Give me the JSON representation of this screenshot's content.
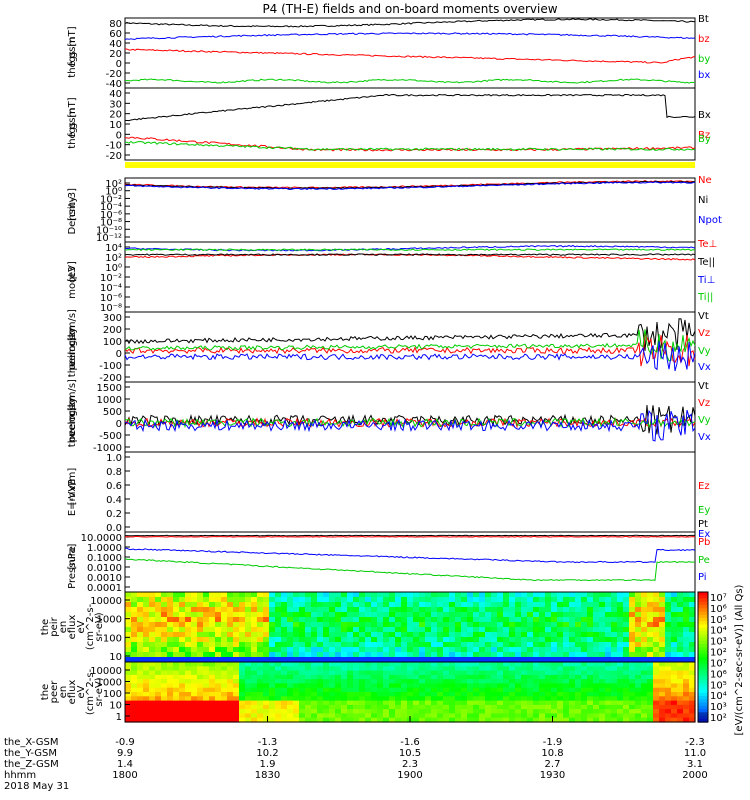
{
  "title": "P4 (TH-E) fields and on-board moments overview",
  "chart_data": {
    "type": "line",
    "x_ticks": [
      "1800",
      "1830",
      "1900",
      "1930",
      "2000"
    ],
    "panels": [
      {
        "id": "p1",
        "ylabel": [
          "the",
          "fgs",
          "gsm",
          "[nT]"
        ],
        "ticks": [
          "80",
          "60",
          "40",
          "20",
          "0",
          "-20",
          "-40"
        ],
        "ylim": [
          -50,
          90
        ],
        "series": [
          {
            "name": "Bt",
            "color": "#000000"
          },
          {
            "name": "bz",
            "color": "#ff0000"
          },
          {
            "name": "by",
            "color": "#00cc00"
          },
          {
            "name": "bx",
            "color": "#0000ff"
          }
        ]
      },
      {
        "id": "p2",
        "ylabel": [
          "the",
          "fgs",
          "gsm",
          "[nT]"
        ],
        "ticks": [
          "40",
          "30",
          "20",
          "10",
          "0",
          "-10",
          "-20"
        ],
        "ylim": [
          -27,
          42
        ],
        "series": [
          {
            "name": "Bx",
            "color": "#000000"
          },
          {
            "name": "Bz",
            "color": "#ff0000"
          },
          {
            "name": "By",
            "color": "#00cc00"
          }
        ]
      },
      {
        "id": "p3",
        "ylabel": [
          "Density",
          "[cm-3]"
        ],
        "ticks": [
          "10²",
          "10⁰",
          "10⁻²",
          "10⁻⁴",
          "10⁻⁶",
          "10⁻⁸",
          "10⁻¹⁰",
          "10⁻¹²"
        ],
        "ylim": [
          -13,
          3
        ],
        "series": [
          {
            "name": "Ne",
            "color": "#ff0000"
          },
          {
            "name": "Ni",
            "color": "#000000"
          },
          {
            "name": "Npot",
            "color": "#0000ff"
          }
        ]
      },
      {
        "id": "p4",
        "ylabel": [
          "moqt3",
          "[eV]"
        ],
        "ticks": [
          "10⁴",
          "10²",
          "10⁰",
          "10⁻²",
          "10⁻⁴",
          "10⁻⁶",
          "10⁻⁸"
        ],
        "ylim": [
          -9,
          4.5
        ],
        "series": [
          {
            "name": "Te⊥",
            "color": "#ff0000"
          },
          {
            "name": "Te||",
            "color": "#000000"
          },
          {
            "name": "Ti⊥",
            "color": "#0000ff"
          },
          {
            "name": "Ti||",
            "color": "#00cc00"
          }
        ]
      },
      {
        "id": "p5",
        "ylabel": [
          "the",
          "peim",
          "velocity",
          "gsm",
          "[km/s]"
        ],
        "ticks": [
          "300",
          "200",
          "100",
          "0",
          "-100",
          "-200"
        ],
        "ylim": [
          -230,
          320
        ],
        "series": [
          {
            "name": "Vt",
            "color": "#000000"
          },
          {
            "name": "Vz",
            "color": "#ff0000"
          },
          {
            "name": "Vy",
            "color": "#00cc00"
          },
          {
            "name": "Vx",
            "color": "#0000ff"
          }
        ]
      },
      {
        "id": "p6",
        "ylabel": [
          "the",
          "peem",
          "velocity",
          "gsm",
          "[km/s]"
        ],
        "ticks": [
          "1500",
          "1000",
          "500",
          "0",
          "-500",
          "-1000"
        ],
        "ylim": [
          -1150,
          1600
        ],
        "series": [
          {
            "name": "Vt",
            "color": "#000000"
          },
          {
            "name": "Vz",
            "color": "#ff0000"
          },
          {
            "name": "Vy",
            "color": "#00cc00"
          },
          {
            "name": "Vx",
            "color": "#0000ff"
          }
        ]
      },
      {
        "id": "p7",
        "ylabel": [
          "E=-VxB",
          "[mV/m]"
        ],
        "ticks": [
          "1.0",
          "0.8",
          "0.6",
          "0.4",
          "0.2",
          "0.0"
        ],
        "ylim": [
          0,
          1
        ],
        "series": [
          {
            "name": "Ez",
            "color": "#ff0000"
          },
          {
            "name": "Ey",
            "color": "#00cc00"
          },
          {
            "name": "Ex",
            "color": "#0000ff"
          }
        ]
      },
      {
        "id": "p8",
        "ylabel": [
          "Pressure",
          "[nPa]"
        ],
        "ticks": [
          "10.0000",
          "1.0000",
          "0.1000",
          "0.0100",
          "0.0010",
          "0.0001"
        ],
        "ylim": [
          -4,
          1
        ],
        "series": [
          {
            "name": "Pt",
            "color": "#000000"
          },
          {
            "name": "Pb",
            "color": "#ff0000"
          },
          {
            "name": "Pe",
            "color": "#00cc00"
          },
          {
            "name": "Pi",
            "color": "#0000ff"
          }
        ]
      }
    ],
    "spectrograms": [
      {
        "id": "s1",
        "ylabel": [
          "the",
          "peir",
          "en",
          "eflux",
          "eV",
          "(cm^2-s-",
          "sr-eV)"
        ],
        "ticks": [
          "10000",
          "1000",
          "100",
          "10"
        ]
      },
      {
        "id": "s2",
        "ylabel": [
          "the",
          "peer",
          "en",
          "eflux",
          "eV",
          "(cm^2-s-",
          "sr-eV)"
        ],
        "ticks": [
          "10000",
          "1000",
          "100",
          "10",
          "1"
        ]
      }
    ],
    "colorbar": {
      "ticks": [
        "10⁷",
        "10⁶",
        "10⁵",
        "10⁴",
        "10³",
        "10²",
        "10⁷",
        "10⁶",
        "10⁵",
        "10⁴",
        "10³",
        "10²"
      ],
      "label": "[eV/(cm^2-sec-sr-eV)] (All Qs)"
    },
    "x_axis_rows": [
      {
        "label": "the_X-GSM",
        "values": [
          "-0.9",
          "-1.3",
          "-1.6",
          "-1.9",
          "-2.3"
        ]
      },
      {
        "label": "the_Y-GSM",
        "values": [
          "9.9",
          "10.2",
          "10.5",
          "10.8",
          "11.0"
        ]
      },
      {
        "label": "the_Z-GSM",
        "values": [
          "1.4",
          "1.9",
          "2.3",
          "2.7",
          "3.1"
        ]
      },
      {
        "label": "hhmm",
        "values": [
          "1800",
          "1830",
          "1900",
          "1930",
          "2000"
        ]
      }
    ],
    "date": "2018 May 31"
  }
}
